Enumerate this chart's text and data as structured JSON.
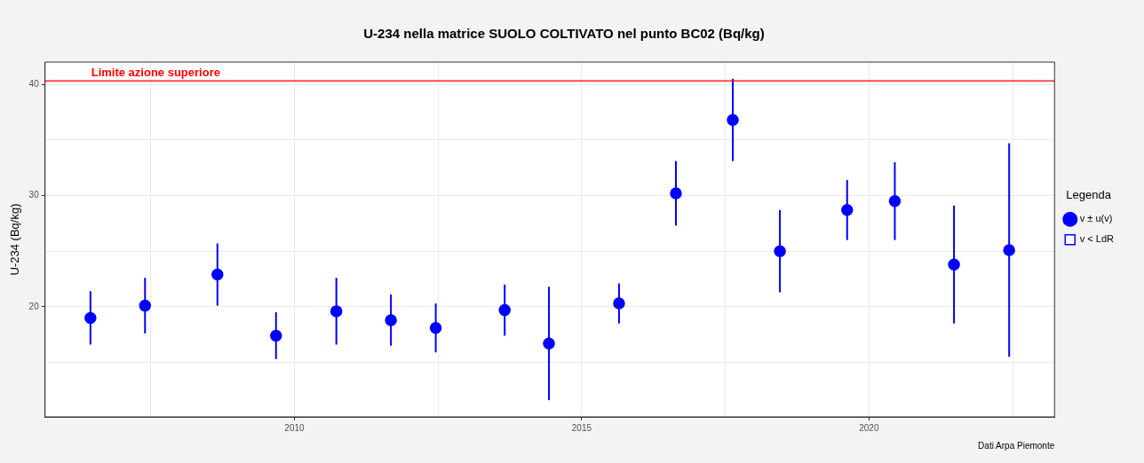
{
  "chart_data": {
    "type": "scatter",
    "title": "U-234 nella matrice SUOLO COLTIVATO nel punto BC02 (Bq/kg)",
    "ylabel": "U-234 (Bq/kg)",
    "legend_title": "Legenda",
    "x": [
      2006.45,
      2007.4,
      2008.66,
      2009.68,
      2010.73,
      2011.68,
      2012.46,
      2013.66,
      2014.43,
      2015.65,
      2016.64,
      2017.63,
      2018.45,
      2019.62,
      2020.45,
      2021.48,
      2022.44
    ],
    "series": [
      {
        "name": "v ± u(v)",
        "color": "#0000ff",
        "marker": "circle",
        "values": [
          19.0,
          20.1,
          22.9,
          17.4,
          19.6,
          18.8,
          18.1,
          19.7,
          16.7,
          20.3,
          30.2,
          36.8,
          25.0,
          28.7,
          29.5,
          23.8,
          25.1
        ],
        "errors": [
          2.4,
          2.5,
          2.8,
          2.1,
          3.0,
          2.3,
          2.2,
          2.3,
          5.1,
          1.8,
          2.9,
          3.7,
          3.7,
          2.7,
          3.5,
          5.3,
          9.6
        ]
      },
      {
        "name": "v < LdR",
        "color": "#0000ff",
        "marker": "square",
        "values": [
          null,
          null,
          null,
          null,
          null,
          null,
          null,
          null,
          null,
          null,
          null,
          null,
          null,
          null,
          null,
          null,
          null
        ]
      }
    ],
    "xlim": [
      2005.66,
      2023.23
    ],
    "xticks": [
      {
        "value": 2007.5,
        "label": null
      },
      2010,
      {
        "value": 2012.5,
        "label": null
      },
      2015,
      {
        "value": 2017.5,
        "label": null
      },
      2020,
      {
        "value": 2022.5,
        "label": null
      }
    ],
    "ylim": [
      10.1,
      42
    ],
    "yticks": [
      {
        "value": 15,
        "label": null
      },
      20,
      {
        "value": 25,
        "label": null
      },
      30,
      {
        "value": 35,
        "label": null
      },
      40
    ],
    "ref_lines": [
      {
        "axis": "y",
        "value": 40.3,
        "label": "Limite azione superiore",
        "color": "#ff0000"
      }
    ],
    "annotations": [
      "Dati Arpa Piemonte"
    ],
    "grid": true,
    "legend": "right"
  }
}
